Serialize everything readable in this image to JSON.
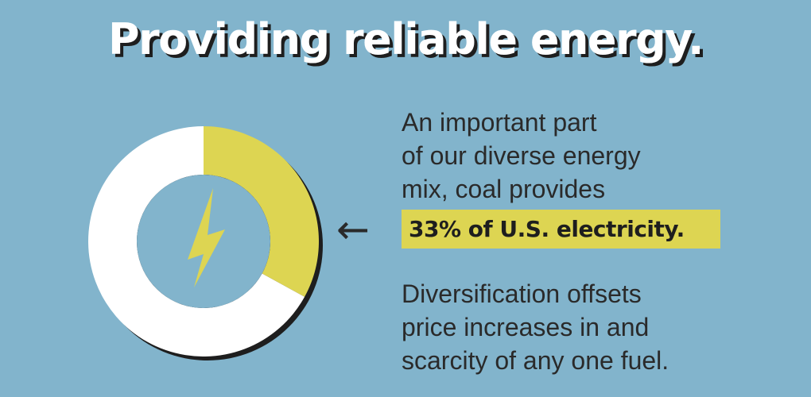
{
  "title": "Providing reliable energy.",
  "colors": {
    "background": "#82b4cc",
    "coal_slice": "#ddd552",
    "rest_slice": "#ffffff",
    "shadow": "#1e1e1e",
    "text": "#2a2a2a",
    "highlight": "#ddd552"
  },
  "icons": {
    "center": "lightning-bolt-icon",
    "pointer": "arrow-left-icon"
  },
  "description": {
    "lines": [
      "An important part",
      "of our diverse energy",
      "mix, coal provides"
    ],
    "highlight": "33% of U.S. electricity."
  },
  "footnote": {
    "lines": [
      "Diversification offsets",
      "price increases in and",
      "scarcity of any one fuel."
    ]
  },
  "chart_data": {
    "type": "pie",
    "variant": "donut",
    "title": "",
    "slices": [
      {
        "value": 33,
        "color": "#ddd552"
      },
      {
        "value": 67,
        "color": "#ffffff"
      }
    ],
    "start_angle_deg": 0,
    "direction": "clockwise",
    "legend": "none",
    "grid": false
  }
}
